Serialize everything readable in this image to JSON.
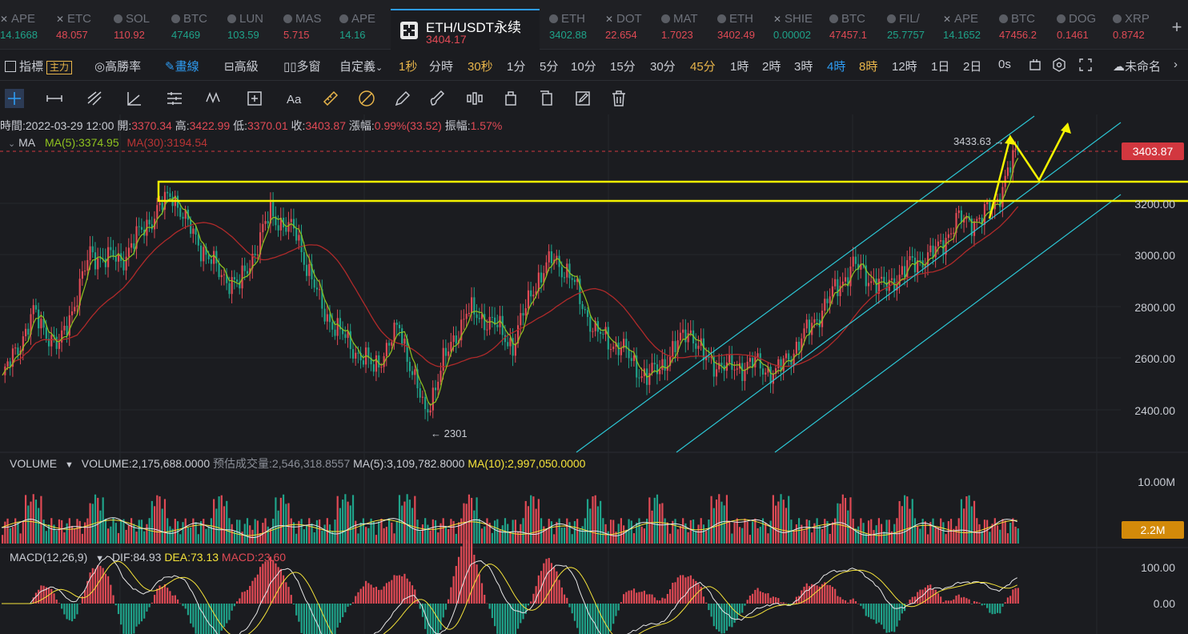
{
  "tickers": [
    {
      "symbol": "APE",
      "price": "14.1668",
      "dir": "dn",
      "icon": "x-icon"
    },
    {
      "symbol": "ETC",
      "price": "48.057",
      "dir": "up",
      "icon": "x-icon"
    },
    {
      "symbol": "SOL",
      "price": "110.92",
      "dir": "up",
      "icon": "coin-icon"
    },
    {
      "symbol": "BTC",
      "price": "47469",
      "dir": "dn",
      "icon": "coin-icon"
    },
    {
      "symbol": "LUN",
      "price": "103.59",
      "dir": "dn",
      "icon": "coin-icon"
    },
    {
      "symbol": "MAS",
      "price": "5.715",
      "dir": "up",
      "icon": "coin-icon"
    },
    {
      "symbol": "APE",
      "price": "14.16",
      "dir": "dn",
      "icon": "coin-icon"
    },
    {
      "symbol": "ETH",
      "price": "3402.88",
      "dir": "dn",
      "icon": "coin-icon"
    },
    {
      "symbol": "DOT",
      "price": "22.654",
      "dir": "up",
      "icon": "x-icon"
    },
    {
      "symbol": "MAT",
      "price": "1.7023",
      "dir": "up",
      "icon": "coin-icon"
    },
    {
      "symbol": "ETH",
      "price": "3402.49",
      "dir": "up",
      "icon": "coin-icon"
    },
    {
      "symbol": "SHIE",
      "price": "0.00002",
      "dir": "dn",
      "icon": "x-icon"
    },
    {
      "symbol": "BTC",
      "price": "47457.1",
      "dir": "up",
      "icon": "coin-icon"
    },
    {
      "symbol": "FIL/",
      "price": "25.7757",
      "dir": "dn",
      "icon": "coin-icon"
    },
    {
      "symbol": "APE",
      "price": "14.1652",
      "dir": "dn",
      "icon": "x-icon"
    },
    {
      "symbol": "BTC",
      "price": "47456.2",
      "dir": "up",
      "icon": "coin-icon"
    },
    {
      "symbol": "DOG",
      "price": "0.1461",
      "dir": "up",
      "icon": "coin-icon"
    },
    {
      "symbol": "XRP",
      "price": "0.8742",
      "dir": "up",
      "icon": "coin-icon"
    }
  ],
  "active": {
    "name": "ETH/USDT永续",
    "price": "3404.17"
  },
  "toolbar": {
    "indicators": "指標",
    "indicators_badge": "主力",
    "win_rate": "高勝率",
    "draw": "畫線",
    "advanced": "高級",
    "multi": "多窗",
    "custom": "自定義",
    "timeframes": [
      "1秒",
      "分時",
      "30秒",
      "1分",
      "5分",
      "10分",
      "15分",
      "30分",
      "45分",
      "1時",
      "2時",
      "3時",
      "4時",
      "8時",
      "12時",
      "1日",
      "2日",
      "0s"
    ],
    "timeframe_hot": [
      "1秒",
      "30秒",
      "45分",
      "8時"
    ],
    "timeframe_selected": "4時",
    "layout_name": "未命名"
  },
  "drawing_tools": [
    "crosshair-icon",
    "horizontal-line-icon",
    "trend-line-icon",
    "angle-icon",
    "parallel-channel-icon",
    "wave-icon",
    "measure-icon",
    "text-icon",
    "ruler-icon",
    "fib-icon",
    "pencil-icon",
    "brush-icon",
    "pattern-icon",
    "lock-icon",
    "copy-icon",
    "edit-icon",
    "trash-icon"
  ],
  "ohlc": {
    "time_label": "時間:",
    "time": "2022-03-29 12:00",
    "open_label": "開:",
    "open": "3370.34",
    "high_label": "高:",
    "high": "3422.99",
    "low_label": "低:",
    "low": "3370.01",
    "close_label": "收:",
    "close": "3403.87",
    "change_label": "漲幅:",
    "change": "0.99%(33.52)",
    "amp_label": "振幅:",
    "amp": "1.57%"
  },
  "ma": {
    "label": "MA",
    "ma5": "MA(5):3374.95",
    "ma30": "MA(30):3194.54"
  },
  "price_axis": [
    "3200.00",
    "3000.00",
    "2800.00",
    "2600.00",
    "2400.00"
  ],
  "last_price": "3403.87",
  "annotations": {
    "high_marker": "3433.63",
    "low_marker": "2301"
  },
  "volume": {
    "label": "VOLUME",
    "value": "VOLUME:2,175,688.0000",
    "estimate": "预估成交量:2,546,318.8557",
    "ma5": "MA(5):3,109,782.8000",
    "ma10": "MA(10):2,997,050.0000",
    "axis_top": "10.00M",
    "tag": "2.2M"
  },
  "macd": {
    "label": "MACD(12,26,9)",
    "dif": "DIF:84.93",
    "dea": "DEA:73.13",
    "macd": "MACD:23.60",
    "axis": [
      "100.00",
      "0.00"
    ]
  },
  "colors": {
    "up": "#e04a55",
    "down": "#1fa38a",
    "ma5": "#8fc31f",
    "ma30": "#b02a2a",
    "drawing": "#f5f300",
    "channel": "#2cc6d4",
    "accent": "#2e9cf3"
  }
}
